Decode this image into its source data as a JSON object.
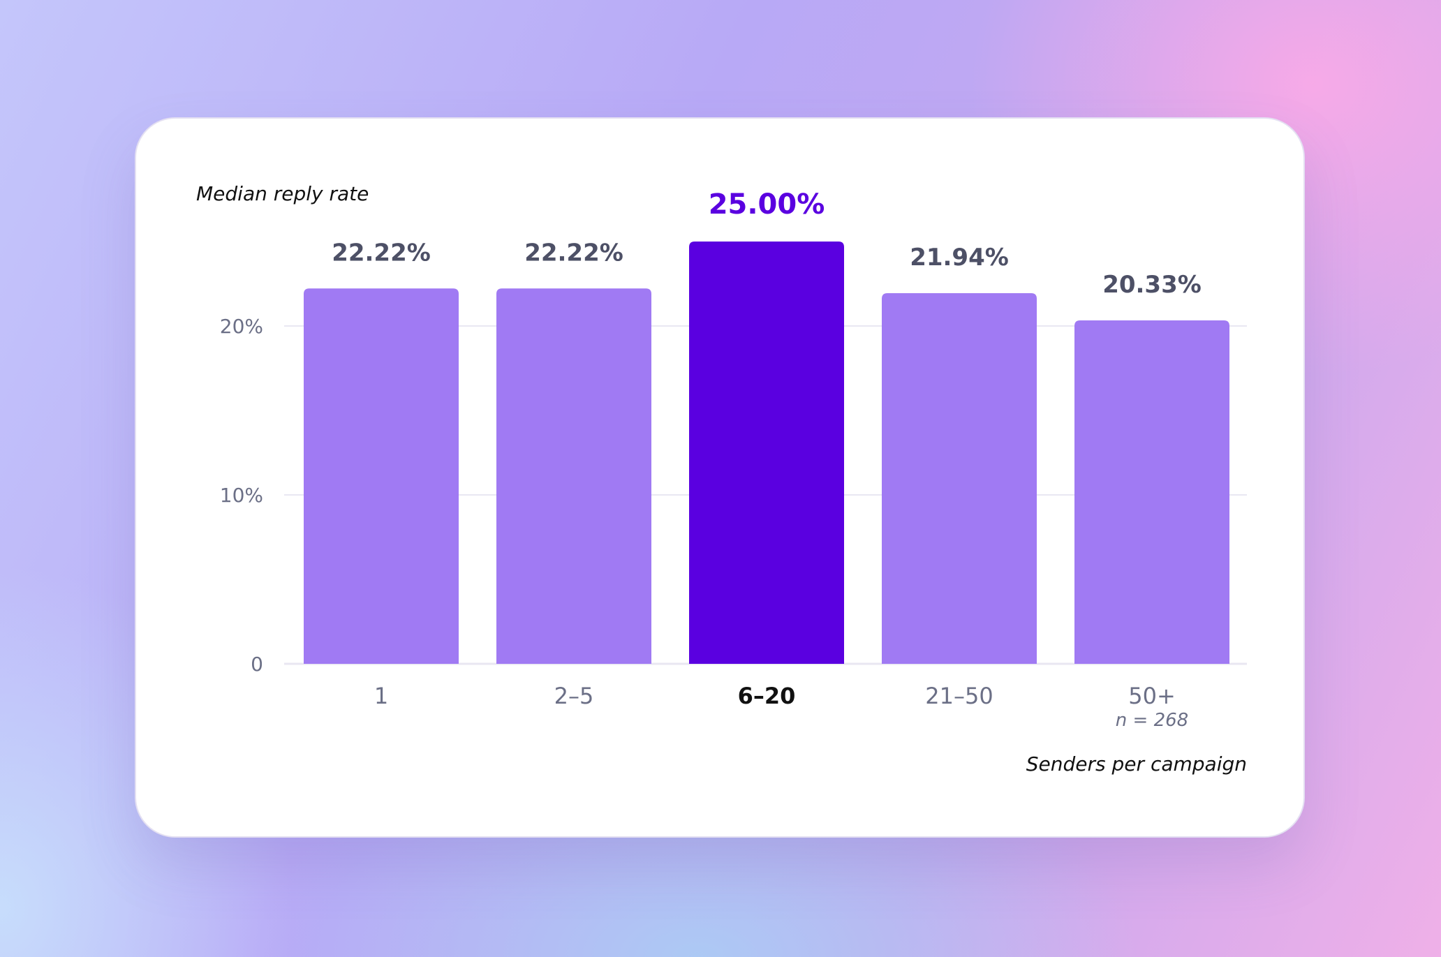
{
  "chart_data": {
    "type": "bar",
    "ylabel": "Median reply rate",
    "xlabel": "Senders per campaign",
    "categories": [
      "1",
      "2–5",
      "6–20",
      "21–50",
      "50+"
    ],
    "values": [
      22.22,
      22.22,
      25.0,
      21.94,
      20.33
    ],
    "value_labels": [
      "22.22%",
      "22.22%",
      "25.00%",
      "21.94%",
      "20.33%"
    ],
    "highlight_index": 2,
    "yticks": [
      {
        "value": 0,
        "label": "0"
      },
      {
        "value": 10,
        "label": "10%"
      },
      {
        "value": 20,
        "label": "20%"
      }
    ],
    "ylim": [
      0,
      25
    ],
    "note": {
      "category_index": 4,
      "text": "n = 268"
    },
    "grid": true,
    "colors": {
      "bar": "#a07af3",
      "bar_highlight": "#5a00e0",
      "value_label": "#4d5066",
      "value_label_highlight": "#5a00e0",
      "category_label": "#6b6f86",
      "category_label_highlight": "#111111",
      "tick_label": "#6b6f86",
      "gridline": "#e9e7f2"
    }
  }
}
